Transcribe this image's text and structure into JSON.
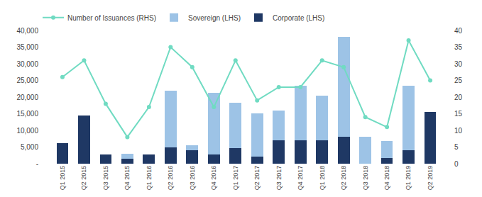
{
  "chart_data": {
    "type": "bar",
    "stacked": true,
    "categories": [
      "Q1 2015",
      "Q2 2015",
      "Q3 2015",
      "Q4 2015",
      "Q1 2016",
      "Q2 2016",
      "Q3 2016",
      "Q4 2016",
      "Q1 2017",
      "Q2 2017",
      "Q3 2017",
      "Q4 2017",
      "Q1 2018",
      "Q2 2018",
      "Q3 2018",
      "Q4 2018",
      "Q1 2019",
      "Q2 2019"
    ],
    "series": [
      {
        "name": "Corporate (LHS)",
        "color": "#1f3864",
        "values": [
          6200,
          14500,
          2800,
          1500,
          2800,
          5000,
          4000,
          2700,
          4700,
          2200,
          7000,
          7000,
          7000,
          8000,
          0,
          1800,
          4000,
          15500
        ]
      },
      {
        "name": "Sovereign (LHS)",
        "color": "#9dc3e6",
        "values": [
          0,
          0,
          0,
          1500,
          0,
          17000,
          1500,
          18500,
          13500,
          13000,
          9000,
          16500,
          13500,
          30000,
          8000,
          5000,
          19500,
          0
        ]
      },
      {
        "name": "Number of Issuances (RHS)",
        "type": "line",
        "axis": "y2",
        "marker": "circle",
        "color": "#70dbc2",
        "values": [
          26,
          31,
          18,
          8,
          17,
          35,
          29,
          17,
          31,
          19,
          23,
          23,
          31,
          29,
          14,
          11,
          37,
          25
        ]
      }
    ],
    "ylim": [
      0,
      40000
    ],
    "yticks": [
      {
        "value": 0,
        "label": "-"
      },
      {
        "value": 5000,
        "label": "5,000"
      },
      {
        "value": 10000,
        "label": "10,000"
      },
      {
        "value": 15000,
        "label": "15,000"
      },
      {
        "value": 20000,
        "label": "20,000"
      },
      {
        "value": 25000,
        "label": "25,000"
      },
      {
        "value": 30000,
        "label": "30,000"
      },
      {
        "value": 35000,
        "label": "35,000"
      },
      {
        "value": 40000,
        "label": "40,000"
      }
    ],
    "y2lim": [
      0,
      40
    ],
    "y2ticks": [
      0,
      5,
      10,
      15,
      20,
      25,
      30,
      35,
      40
    ],
    "grid": false,
    "legend": "upper left"
  }
}
